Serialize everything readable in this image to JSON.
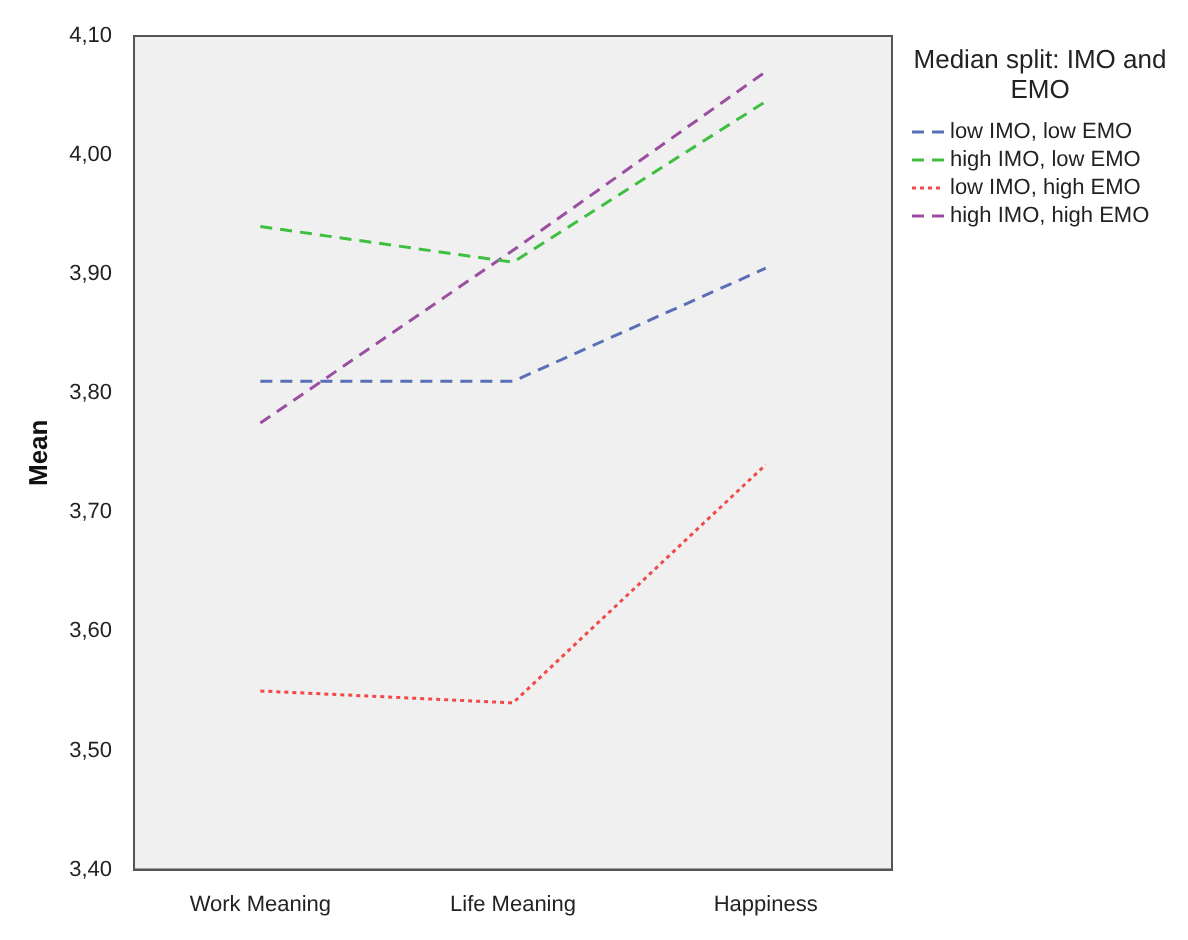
{
  "chart_data": {
    "type": "line",
    "ylabel": "Mean",
    "legend_title": "Median split: IMO and EMO",
    "legend": "top right",
    "grid": false,
    "marker": "none",
    "categories": [
      "Work Meaning",
      "Life Meaning",
      "Happiness"
    ],
    "ylim": [
      3.4,
      4.1
    ],
    "yticks": [
      {
        "value": 3.4,
        "label": "3,40"
      },
      {
        "value": 3.5,
        "label": "3,50"
      },
      {
        "value": 3.6,
        "label": "3,60"
      },
      {
        "value": 3.7,
        "label": "3,70"
      },
      {
        "value": 3.8,
        "label": "3,80"
      },
      {
        "value": 3.9,
        "label": "3,90"
      },
      {
        "value": 4.0,
        "label": "4,00"
      },
      {
        "value": 4.1,
        "label": "4,10"
      }
    ],
    "series": [
      {
        "name": "low IMO, low EMO",
        "color": "#5a6fb5",
        "line_style": "dashed",
        "values": [
          3.81,
          3.81,
          3.905
        ]
      },
      {
        "name": "high IMO, low EMO",
        "color": "#3fbf3f",
        "line_style": "dashed",
        "values": [
          3.94,
          3.91,
          4.045
        ]
      },
      {
        "name": "low IMO, high EMO",
        "color": "#f04a4a",
        "line_style": "dotted",
        "values": [
          3.55,
          3.54,
          3.74
        ]
      },
      {
        "name": "high IMO, high EMO",
        "color": "#9a4fa0",
        "line_style": "dashed",
        "values": [
          3.775,
          3.92,
          4.07
        ]
      }
    ]
  }
}
